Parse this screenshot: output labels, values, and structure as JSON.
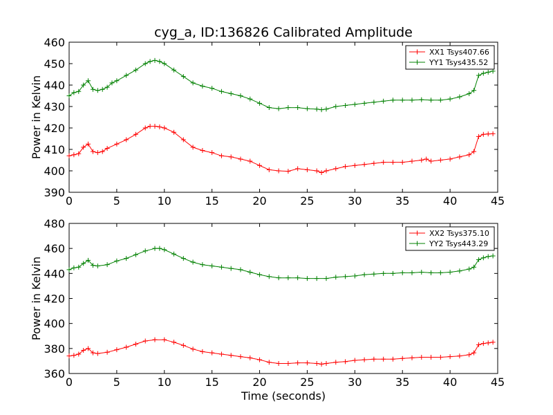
{
  "figure": {
    "title": "cyg_a, ID:136826 Calibrated Amplitude",
    "xlabel": "Time (seconds)"
  },
  "chart_data": [
    {
      "type": "line",
      "title": "cyg_a, ID:136826 Calibrated Amplitude",
      "xlabel": "",
      "ylabel": "Power in Kelvin",
      "xlim": [
        0,
        45
      ],
      "ylim": [
        390,
        460
      ],
      "xticks": [
        "0",
        "5",
        "10",
        "15",
        "20",
        "25",
        "30",
        "35",
        "40",
        "45"
      ],
      "yticks": [
        "390",
        "400",
        "410",
        "420",
        "430",
        "440",
        "450",
        "460"
      ],
      "legend_position": "top-right",
      "grid": false,
      "series": [
        {
          "name": "XX1 Tsys407.66",
          "color": "#ff0000",
          "x": [
            0,
            0.5,
            1,
            1.5,
            2,
            2.5,
            3,
            3.5,
            4,
            5,
            6,
            7,
            8,
            8.5,
            9,
            9.5,
            10,
            11,
            12,
            13,
            14,
            15,
            16,
            17,
            18,
            19,
            20,
            21,
            22,
            23,
            24,
            25,
            26,
            26.5,
            27,
            28,
            29,
            30,
            31,
            32,
            33,
            34,
            35,
            36,
            37,
            37.5,
            38,
            39,
            40,
            41,
            42,
            42.5,
            43,
            43.5,
            44,
            44.5
          ],
          "y": [
            407,
            407.5,
            408,
            411,
            412.5,
            409,
            408.5,
            409,
            410.5,
            412.5,
            414.5,
            417,
            420,
            420.8,
            420.8,
            420.5,
            420,
            418,
            414.5,
            411,
            409.5,
            408.5,
            407,
            406.5,
            405.5,
            404.5,
            402.5,
            400.5,
            400,
            399.8,
            401,
            400.5,
            400,
            399.2,
            400,
            401,
            402,
            402.5,
            403,
            403.5,
            404,
            404,
            404,
            404.5,
            405,
            405.5,
            404.5,
            405,
            405.5,
            406.5,
            407.5,
            409,
            416,
            417,
            417.2,
            417.3
          ]
        },
        {
          "name": "YY1 Tsys435.52",
          "color": "#008000",
          "x": [
            0,
            0.5,
            1,
            1.5,
            2,
            2.5,
            3,
            3.5,
            4,
            4.5,
            5,
            6,
            7,
            8,
            8.5,
            9,
            9.5,
            10,
            11,
            12,
            13,
            14,
            15,
            16,
            17,
            18,
            19,
            20,
            21,
            22,
            23,
            24,
            25,
            26,
            26.5,
            27,
            28,
            29,
            30,
            31,
            32,
            33,
            34,
            35,
            36,
            37,
            38,
            39,
            40,
            41,
            42,
            42.5,
            43,
            43.5,
            44,
            44.5
          ],
          "y": [
            435,
            436.5,
            437,
            440,
            442,
            438,
            437.5,
            438,
            439,
            441,
            442,
            444.5,
            447,
            450,
            451,
            451.5,
            451,
            450,
            447,
            444,
            441,
            439.5,
            438.5,
            437,
            436,
            435,
            433.5,
            431.5,
            429.5,
            429,
            429.5,
            429.5,
            429,
            428.8,
            428.5,
            428.8,
            430,
            430.5,
            431,
            431.5,
            432,
            432.5,
            433,
            433,
            433,
            433.2,
            433,
            433,
            433.5,
            434.5,
            436,
            437.5,
            444.5,
            445.5,
            446,
            446.5
          ]
        }
      ]
    },
    {
      "type": "line",
      "title": "",
      "xlabel": "Time (seconds)",
      "ylabel": "Power in Kelvin",
      "xlim": [
        0,
        45
      ],
      "ylim": [
        360,
        480
      ],
      "xticks": [
        "0",
        "5",
        "10",
        "15",
        "20",
        "25",
        "30",
        "35",
        "40",
        "45"
      ],
      "yticks": [
        "360",
        "380",
        "400",
        "420",
        "440",
        "460",
        "480"
      ],
      "legend_position": "top-right",
      "grid": false,
      "series": [
        {
          "name": "XX2 Tsys375.10",
          "color": "#ff0000",
          "x": [
            0,
            0.5,
            1,
            1.5,
            2,
            2.5,
            3,
            4,
            5,
            6,
            7,
            8,
            9,
            10,
            11,
            12,
            13,
            14,
            15,
            16,
            17,
            18,
            19,
            20,
            21,
            22,
            23,
            24,
            25,
            26,
            26.5,
            27,
            28,
            29,
            30,
            31,
            32,
            33,
            34,
            35,
            36,
            37,
            38,
            39,
            40,
            41,
            42,
            42.5,
            43,
            43.5,
            44,
            44.5
          ],
          "y": [
            374,
            374.5,
            375.5,
            378.5,
            380,
            376.5,
            376,
            377,
            379,
            381,
            383.5,
            386,
            387,
            387,
            385,
            382.5,
            379.5,
            377.5,
            376.5,
            375.5,
            374.5,
            373.5,
            372.5,
            371,
            369,
            368,
            368,
            368.5,
            368.5,
            368,
            367.5,
            368,
            369,
            369.5,
            370.5,
            371,
            371.5,
            371.5,
            371.5,
            372,
            372.5,
            373,
            373,
            373,
            373.5,
            374,
            375,
            376.5,
            383,
            384,
            384.5,
            385
          ]
        },
        {
          "name": "YY2 Tsys443.29",
          "color": "#008000",
          "x": [
            0,
            0.5,
            1,
            1.5,
            2,
            2.5,
            3,
            4,
            5,
            6,
            7,
            8,
            9,
            9.5,
            10,
            11,
            12,
            13,
            14,
            15,
            16,
            17,
            18,
            19,
            20,
            21,
            22,
            23,
            24,
            25,
            26,
            27,
            28,
            29,
            30,
            31,
            32,
            33,
            34,
            35,
            36,
            37,
            38,
            39,
            40,
            41,
            42,
            42.5,
            43,
            43.5,
            44,
            44.5
          ],
          "y": [
            443,
            444.5,
            445,
            448,
            450.5,
            446.5,
            446,
            447,
            450,
            452,
            455,
            458,
            460,
            460,
            459,
            455.5,
            452,
            449,
            447,
            446,
            445,
            444,
            443,
            441,
            439,
            437.5,
            436.5,
            436.5,
            436.5,
            436,
            436,
            436,
            437,
            437.5,
            438,
            439,
            439.5,
            440,
            440,
            440.5,
            440.5,
            441,
            440.5,
            440.5,
            441,
            442,
            443.5,
            445,
            451,
            452.5,
            453.5,
            454
          ]
        }
      ]
    }
  ]
}
